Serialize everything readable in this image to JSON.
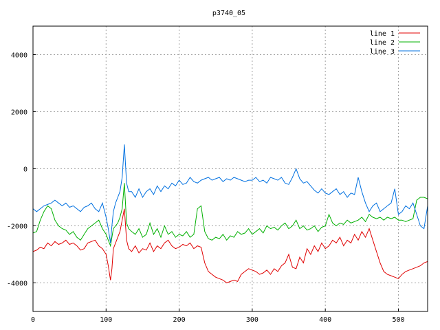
{
  "chart_data": {
    "type": "line",
    "title": "p3740_05",
    "xlabel": "",
    "ylabel": "",
    "xlim": [
      0,
      540
    ],
    "ylim": [
      -5000,
      5000
    ],
    "xticks": [
      0,
      100,
      200,
      300,
      400,
      500
    ],
    "yticks": [
      -4000,
      -2000,
      0,
      2000,
      4000
    ],
    "grid": true,
    "legend_position": "top-right",
    "series": [
      {
        "name": "line 1",
        "color": "#e00000",
        "x": [
          0,
          5,
          10,
          15,
          20,
          25,
          30,
          35,
          40,
          45,
          50,
          55,
          60,
          65,
          70,
          75,
          80,
          85,
          90,
          95,
          100,
          103,
          106,
          108,
          110,
          113,
          116,
          119,
          122,
          125,
          128,
          131,
          135,
          140,
          145,
          150,
          155,
          160,
          165,
          170,
          175,
          180,
          185,
          190,
          195,
          200,
          205,
          210,
          215,
          220,
          225,
          230,
          235,
          240,
          245,
          250,
          255,
          260,
          265,
          270,
          275,
          280,
          285,
          290,
          295,
          300,
          305,
          310,
          315,
          320,
          325,
          330,
          335,
          340,
          345,
          350,
          355,
          360,
          365,
          370,
          375,
          380,
          385,
          390,
          395,
          400,
          405,
          410,
          415,
          420,
          425,
          430,
          435,
          440,
          445,
          450,
          455,
          460,
          465,
          470,
          475,
          480,
          485,
          490,
          495,
          500,
          505,
          510,
          515,
          520,
          525,
          530,
          535,
          540
        ],
        "y": [
          -2900,
          -2850,
          -2750,
          -2800,
          -2600,
          -2700,
          -2550,
          -2650,
          -2600,
          -2500,
          -2650,
          -2600,
          -2700,
          -2850,
          -2800,
          -2600,
          -2550,
          -2500,
          -2700,
          -2800,
          -3000,
          -3400,
          -3900,
          -3500,
          -2800,
          -2600,
          -2400,
          -2200,
          -1800,
          -1400,
          -2500,
          -2800,
          -2900,
          -2700,
          -2950,
          -2800,
          -2850,
          -2600,
          -2900,
          -2700,
          -2800,
          -2600,
          -2500,
          -2700,
          -2800,
          -2750,
          -2650,
          -2700,
          -2600,
          -2800,
          -2700,
          -2750,
          -3300,
          -3600,
          -3700,
          -3800,
          -3850,
          -3900,
          -4000,
          -3950,
          -3900,
          -3950,
          -3700,
          -3600,
          -3500,
          -3550,
          -3600,
          -3700,
          -3650,
          -3550,
          -3700,
          -3500,
          -3600,
          -3400,
          -3300,
          -3000,
          -3450,
          -3500,
          -3100,
          -3300,
          -2800,
          -3000,
          -2700,
          -2900,
          -2600,
          -2800,
          -2700,
          -2500,
          -2600,
          -2400,
          -2700,
          -2500,
          -2600,
          -2300,
          -2500,
          -2200,
          -2400,
          -2100,
          -2500,
          -2900,
          -3300,
          -3600,
          -3700,
          -3750,
          -3800,
          -3850,
          -3700,
          -3600,
          -3550,
          -3500,
          -3450,
          -3400,
          -3300,
          -3250
        ]
      },
      {
        "name": "line 2",
        "color": "#00b000",
        "x": [
          0,
          5,
          10,
          15,
          20,
          25,
          30,
          35,
          40,
          45,
          50,
          55,
          60,
          65,
          70,
          75,
          80,
          85,
          90,
          95,
          100,
          103,
          106,
          108,
          110,
          113,
          116,
          119,
          122,
          125,
          128,
          131,
          135,
          140,
          145,
          150,
          155,
          160,
          165,
          170,
          175,
          180,
          185,
          190,
          195,
          200,
          205,
          210,
          215,
          220,
          225,
          230,
          235,
          240,
          245,
          250,
          255,
          260,
          265,
          270,
          275,
          280,
          285,
          290,
          295,
          300,
          305,
          310,
          315,
          320,
          325,
          330,
          335,
          340,
          345,
          350,
          355,
          360,
          365,
          370,
          375,
          380,
          385,
          390,
          395,
          400,
          405,
          410,
          415,
          420,
          425,
          430,
          435,
          440,
          445,
          450,
          455,
          460,
          465,
          470,
          475,
          480,
          485,
          490,
          495,
          500,
          505,
          510,
          515,
          520,
          525,
          530,
          535,
          540
        ],
        "y": [
          -2250,
          -2200,
          -1800,
          -1500,
          -1300,
          -1400,
          -1800,
          -2000,
          -2100,
          -2150,
          -2300,
          -2200,
          -2400,
          -2500,
          -2300,
          -2100,
          -2000,
          -1900,
          -1800,
          -2100,
          -2300,
          -2500,
          -2700,
          -2400,
          -2100,
          -2000,
          -1900,
          -1700,
          -1400,
          -500,
          -1900,
          -2100,
          -2200,
          -2300,
          -2100,
          -2400,
          -2300,
          -1900,
          -2300,
          -2100,
          -2400,
          -2000,
          -2300,
          -2200,
          -2400,
          -2300,
          -2350,
          -2200,
          -2400,
          -2300,
          -1400,
          -1300,
          -2200,
          -2450,
          -2500,
          -2400,
          -2450,
          -2300,
          -2500,
          -2350,
          -2400,
          -2200,
          -2300,
          -2250,
          -2100,
          -2300,
          -2200,
          -2100,
          -2250,
          -2000,
          -2100,
          -2050,
          -2150,
          -2000,
          -1900,
          -2100,
          -2000,
          -1800,
          -2100,
          -2000,
          -2150,
          -2100,
          -2000,
          -2200,
          -2050,
          -2000,
          -1600,
          -1900,
          -2000,
          -1900,
          -1950,
          -1800,
          -1900,
          -1850,
          -1800,
          -1700,
          -1850,
          -1600,
          -1700,
          -1750,
          -1700,
          -1800,
          -1700,
          -1750,
          -1700,
          -1800,
          -1800,
          -1850,
          -1800,
          -1750,
          -1100,
          -1000,
          -1000,
          -1050
        ]
      },
      {
        "name": "line 3",
        "color": "#0070e0",
        "x": [
          0,
          5,
          10,
          15,
          20,
          25,
          30,
          35,
          40,
          45,
          50,
          55,
          60,
          65,
          70,
          75,
          80,
          85,
          90,
          95,
          100,
          103,
          106,
          108,
          110,
          113,
          116,
          119,
          122,
          125,
          128,
          131,
          135,
          140,
          145,
          150,
          155,
          160,
          165,
          170,
          175,
          180,
          185,
          190,
          195,
          200,
          205,
          210,
          215,
          220,
          225,
          230,
          235,
          240,
          245,
          250,
          255,
          260,
          265,
          270,
          275,
          280,
          285,
          290,
          295,
          300,
          305,
          310,
          315,
          320,
          325,
          330,
          335,
          340,
          345,
          350,
          355,
          360,
          365,
          370,
          375,
          380,
          385,
          390,
          395,
          400,
          405,
          410,
          415,
          420,
          425,
          430,
          435,
          440,
          445,
          450,
          455,
          460,
          465,
          470,
          475,
          480,
          485,
          490,
          495,
          500,
          505,
          510,
          515,
          520,
          525,
          530,
          535,
          540
        ],
        "y": [
          -1400,
          -1500,
          -1400,
          -1300,
          -1250,
          -1200,
          -1100,
          -1200,
          -1300,
          -1200,
          -1350,
          -1300,
          -1400,
          -1500,
          -1350,
          -1300,
          -1200,
          -1400,
          -1500,
          -1200,
          -1700,
          -2100,
          -2600,
          -2000,
          -1500,
          -1200,
          -1000,
          -800,
          -300,
          850,
          -500,
          -800,
          -800,
          -1000,
          -700,
          -1000,
          -800,
          -700,
          -900,
          -600,
          -800,
          -600,
          -700,
          -500,
          -600,
          -400,
          -550,
          -500,
          -300,
          -450,
          -500,
          -400,
          -350,
          -300,
          -400,
          -350,
          -300,
          -450,
          -350,
          -400,
          -300,
          -350,
          -400,
          -450,
          -400,
          -400,
          -300,
          -450,
          -400,
          -500,
          -300,
          -350,
          -400,
          -300,
          -500,
          -550,
          -300,
          0,
          -350,
          -500,
          -450,
          -600,
          -750,
          -850,
          -700,
          -850,
          -900,
          -800,
          -700,
          -900,
          -800,
          -1000,
          -850,
          -900,
          -300,
          -800,
          -1200,
          -1500,
          -1300,
          -1200,
          -1500,
          -1400,
          -1300,
          -1200,
          -700,
          -1600,
          -1500,
          -1300,
          -1400,
          -1200,
          -1600,
          -2000,
          -2100,
          -1300
        ]
      }
    ]
  }
}
